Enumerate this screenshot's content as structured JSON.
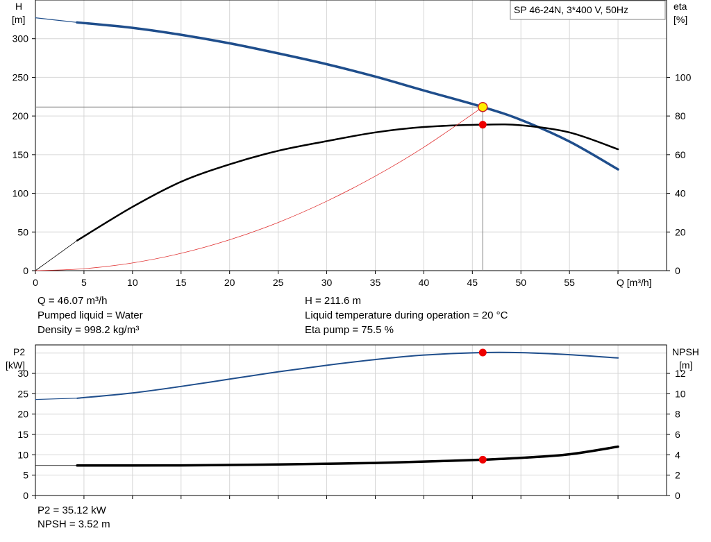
{
  "chart_data": [
    {
      "type": "line",
      "pump_label": "SP 46-24N, 3*400 V, 50Hz",
      "xlabel": "Q [m³/h]",
      "xlim": [
        0,
        65
      ],
      "x_ticks": [
        0,
        5,
        10,
        15,
        20,
        25,
        30,
        35,
        40,
        45,
        50,
        55
      ],
      "y_left": {
        "label_top": "H",
        "label_unit": "[m]",
        "lim": [
          0,
          350
        ],
        "ticks": [
          0,
          50,
          100,
          150,
          200,
          250,
          300
        ]
      },
      "y_right": {
        "label_top": "eta",
        "label_unit": "[%]",
        "lim": [
          0,
          140
        ],
        "ticks": [
          0,
          20,
          40,
          60,
          80,
          100
        ]
      },
      "grid": true,
      "series": [
        {
          "axis": "left",
          "color": "#1f4e8c",
          "width": 3.5,
          "x": [
            4.3,
            10,
            15,
            20,
            25,
            30,
            35,
            40,
            46.07,
            50,
            55,
            60
          ],
          "y": [
            321,
            314,
            305,
            294,
            281,
            267,
            251,
            233,
            211.6,
            195,
            167,
            131
          ]
        },
        {
          "axis": "left",
          "color": "#1f4e8c",
          "width": 1.2,
          "x": [
            0,
            4.3
          ],
          "y": [
            327,
            321
          ]
        },
        {
          "axis": "right",
          "color": "#000000",
          "width": 2.5,
          "x": [
            4.3,
            10,
            15,
            20,
            25,
            30,
            35,
            40,
            46.07,
            50,
            55,
            60
          ],
          "y": [
            15.6,
            33,
            46,
            55,
            62,
            67,
            71.5,
            74.3,
            75.5,
            75.2,
            71.5,
            62.8
          ]
        },
        {
          "axis": "right",
          "color": "#000000",
          "width": 0.8,
          "x": [
            0,
            4.3
          ],
          "y": [
            0,
            15.6
          ]
        },
        {
          "axis": "left",
          "color": "#e03030",
          "width": 0.8,
          "x": [
            0,
            5,
            10,
            15,
            20,
            25,
            30,
            35,
            40,
            46.07
          ],
          "y": [
            0,
            2.5,
            10,
            22.4,
            39.9,
            62.3,
            89.8,
            122.2,
            159.6,
            211.6
          ]
        }
      ],
      "operating_point": {
        "q": 46.07,
        "h": 211.6,
        "eta": 75.5
      },
      "duty_readouts": [
        "Q = 46.07 m³/h",
        "Pumped liquid = Water",
        "Density = 998.2 kg/m³",
        "H = 211.6 m",
        "Liquid temperature during operation = 20 °C",
        "Eta pump = 75.5 %"
      ]
    },
    {
      "type": "line",
      "xlim": [
        0,
        65
      ],
      "y_left": {
        "label_top": "P2",
        "label_unit": "[kW]",
        "lim": [
          0,
          37
        ],
        "ticks": [
          0,
          5,
          10,
          15,
          20,
          25,
          30
        ]
      },
      "y_right": {
        "label_top": "NPSH",
        "label_unit": "[m]",
        "lim": [
          0,
          14.8
        ],
        "ticks": [
          0,
          2,
          4,
          6,
          8,
          10,
          12
        ]
      },
      "grid": true,
      "series": [
        {
          "axis": "left",
          "color": "#1f4e8c",
          "width": 2,
          "x": [
            4.3,
            10,
            15,
            20,
            25,
            30,
            35,
            40,
            46.07,
            50,
            55,
            60
          ],
          "y": [
            23.9,
            25.2,
            26.8,
            28.6,
            30.4,
            32.0,
            33.4,
            34.5,
            35.12,
            35.1,
            34.6,
            33.8
          ]
        },
        {
          "axis": "left",
          "color": "#1f4e8c",
          "width": 1.2,
          "x": [
            0,
            4.3
          ],
          "y": [
            23.6,
            23.9
          ]
        },
        {
          "axis": "right",
          "color": "#000000",
          "width": 3.5,
          "x": [
            4.3,
            10,
            15,
            20,
            25,
            30,
            35,
            40,
            46.07,
            50,
            55,
            60
          ],
          "y": [
            2.95,
            2.95,
            2.96,
            3.0,
            3.05,
            3.12,
            3.2,
            3.33,
            3.52,
            3.7,
            4.05,
            4.8
          ]
        },
        {
          "axis": "right",
          "color": "#000000",
          "width": 0.8,
          "x": [
            0,
            4.3
          ],
          "y": [
            2.95,
            2.95
          ]
        }
      ],
      "operating_point": {
        "q": 46.07,
        "p2": 35.12,
        "npsh": 3.52
      },
      "duty_readouts": [
        "P2 = 35.12 kW",
        "NPSH = 3.52 m"
      ]
    }
  ]
}
